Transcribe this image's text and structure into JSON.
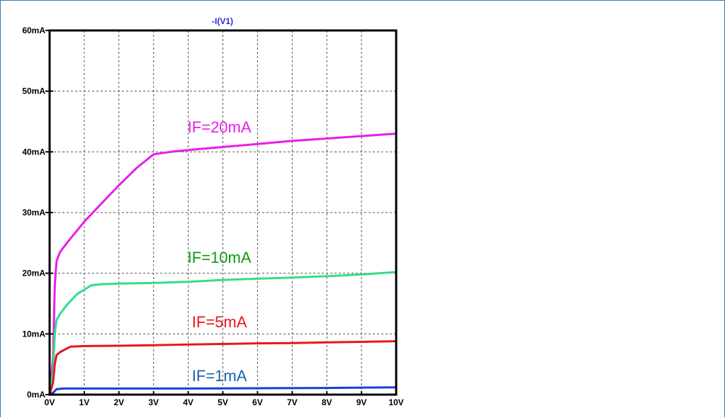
{
  "chart_data": {
    "type": "line",
    "title": "-I(V1)",
    "title_color": "#2b2bdd",
    "xlabel": "",
    "ylabel": "",
    "xlim": [
      0,
      10
    ],
    "ylim": [
      0,
      60
    ],
    "x_ticks": [
      "0V",
      "1V",
      "2V",
      "3V",
      "4V",
      "5V",
      "6V",
      "7V",
      "8V",
      "9V",
      "10V"
    ],
    "y_ticks": [
      "0mA",
      "10mA",
      "20mA",
      "30mA",
      "40mA",
      "50mA",
      "60mA"
    ],
    "grid": true,
    "series": [
      {
        "name": "IF=20mA",
        "color": "#e81ee8",
        "points": [
          [
            0,
            0
          ],
          [
            0.1,
            6
          ],
          [
            0.15,
            18
          ],
          [
            0.2,
            22
          ],
          [
            0.3,
            23.5
          ],
          [
            0.5,
            25
          ],
          [
            1,
            28.5
          ],
          [
            1.5,
            31.5
          ],
          [
            2,
            34.5
          ],
          [
            2.5,
            37.3
          ],
          [
            3,
            39.6
          ],
          [
            3.5,
            40
          ],
          [
            4,
            40.3
          ],
          [
            5,
            40.8
          ],
          [
            6,
            41.3
          ],
          [
            7,
            41.8
          ],
          [
            8,
            42.2
          ],
          [
            9,
            42.6
          ],
          [
            10,
            43
          ]
        ],
        "label_at": [
          4.9,
          43.2
        ]
      },
      {
        "name": "IF=10mA",
        "color": "#33dd88",
        "points": [
          [
            0,
            0
          ],
          [
            0.1,
            4
          ],
          [
            0.15,
            10
          ],
          [
            0.2,
            12.3
          ],
          [
            0.3,
            13.3
          ],
          [
            0.5,
            14.8
          ],
          [
            0.8,
            16.6
          ],
          [
            1.2,
            18
          ],
          [
            1.5,
            18.2
          ],
          [
            2,
            18.3
          ],
          [
            3,
            18.4
          ],
          [
            4,
            18.6
          ],
          [
            5,
            18.9
          ],
          [
            6,
            19.1
          ],
          [
            7,
            19.3
          ],
          [
            8,
            19.5
          ],
          [
            9,
            19.8
          ],
          [
            10,
            20.2
          ]
        ],
        "label_at": [
          4.9,
          21.7
        ]
      },
      {
        "name": "IF=5mA",
        "color": "#e8161c",
        "points": [
          [
            0,
            0
          ],
          [
            0.1,
            2
          ],
          [
            0.15,
            5
          ],
          [
            0.2,
            6.5
          ],
          [
            0.3,
            7
          ],
          [
            0.6,
            7.9
          ],
          [
            1,
            8
          ],
          [
            2,
            8.05
          ],
          [
            3,
            8.15
          ],
          [
            4,
            8.25
          ],
          [
            5,
            8.35
          ],
          [
            6,
            8.45
          ],
          [
            7,
            8.5
          ],
          [
            8,
            8.6
          ],
          [
            9,
            8.7
          ],
          [
            10,
            8.8
          ]
        ],
        "label_at": [
          4.9,
          11.1
        ]
      },
      {
        "name": "IF=1mA",
        "color": "#1a3fd6",
        "points": [
          [
            0,
            0
          ],
          [
            0.1,
            0.3
          ],
          [
            0.2,
            0.9
          ],
          [
            0.4,
            1
          ],
          [
            2,
            1
          ],
          [
            4,
            1
          ],
          [
            6,
            1.05
          ],
          [
            8,
            1.1
          ],
          [
            10,
            1.2
          ]
        ],
        "label_at": [
          4.9,
          2.2
        ]
      }
    ],
    "label_colors": [
      "#e81ee8",
      "#119911",
      "#e8161c",
      "#1a5fb0"
    ]
  }
}
